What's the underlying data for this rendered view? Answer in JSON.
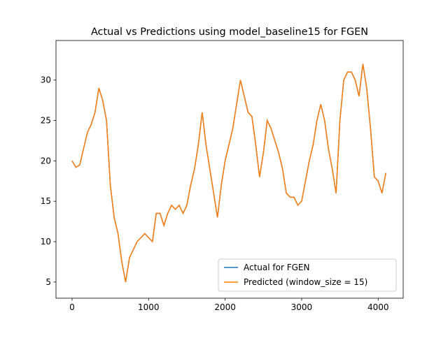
{
  "chart_data": {
    "type": "line",
    "title": "Actual vs Predictions using model_baseline15 for FGEN",
    "x": [
      0,
      50,
      100,
      150,
      200,
      250,
      300,
      350,
      400,
      450,
      500,
      550,
      600,
      650,
      700,
      750,
      800,
      850,
      900,
      950,
      1000,
      1050,
      1100,
      1150,
      1200,
      1250,
      1300,
      1350,
      1400,
      1450,
      1500,
      1550,
      1600,
      1650,
      1700,
      1750,
      1800,
      1850,
      1900,
      1950,
      2000,
      2050,
      2100,
      2150,
      2200,
      2250,
      2300,
      2350,
      2400,
      2450,
      2500,
      2550,
      2600,
      2650,
      2700,
      2750,
      2800,
      2850,
      2900,
      2950,
      3000,
      3050,
      3100,
      3150,
      3200,
      3250,
      3300,
      3350,
      3400,
      3450,
      3500,
      3550,
      3600,
      3650,
      3700,
      3750,
      3800,
      3850,
      3900,
      3950,
      4000,
      4050,
      4100
    ],
    "series": [
      {
        "name": "Actual for FGEN",
        "color": "#1f77b4",
        "values": [
          20,
          19.2,
          19.5,
          21.5,
          23.5,
          24.5,
          26,
          29,
          27.5,
          25,
          17,
          13,
          11,
          7.5,
          5,
          8,
          9,
          10,
          10.5,
          11,
          10.5,
          10,
          13.5,
          13.5,
          12,
          13.5,
          14.5,
          14,
          14.5,
          13.5,
          14.5,
          17,
          19,
          22,
          26,
          22,
          19,
          16,
          13,
          17,
          20,
          22,
          24,
          27,
          30,
          28,
          26,
          25.5,
          22,
          18,
          21,
          25,
          24,
          22.5,
          21,
          19,
          16,
          15.5,
          15.5,
          14.5,
          15,
          17.5,
          20,
          22,
          25,
          27,
          25,
          21.5,
          19,
          16,
          25,
          30,
          31,
          31,
          30,
          28,
          32,
          29,
          24,
          18,
          17.5,
          16,
          18.5
        ]
      },
      {
        "name": "Predicted (window_size = 15)",
        "color": "#ff7f0e",
        "values": [
          20,
          19.2,
          19.5,
          21.5,
          23.5,
          24.5,
          26,
          29,
          27.5,
          25,
          17,
          13,
          11,
          7.5,
          5,
          8,
          9,
          10,
          10.5,
          11,
          10.5,
          10,
          13.5,
          13.5,
          12,
          13.5,
          14.5,
          14,
          14.5,
          13.5,
          14.5,
          17,
          19,
          22,
          26,
          22,
          19,
          16,
          13,
          17,
          20,
          22,
          24,
          27,
          30,
          28,
          26,
          25.5,
          22,
          18,
          21,
          25,
          24,
          22.5,
          21,
          19,
          16,
          15.5,
          15.5,
          14.5,
          15,
          17.5,
          20,
          22,
          25,
          27,
          25,
          21.5,
          19,
          16,
          25,
          30,
          31,
          31,
          30,
          28,
          32,
          29,
          24,
          18,
          17.5,
          16,
          18.5
        ]
      }
    ],
    "xlim": [
      -210,
      4327
    ],
    "xticks": [
      0,
      1000,
      2000,
      3000,
      4000
    ],
    "ylim": [
      3.0,
      34.9
    ],
    "yticks": [
      5,
      10,
      15,
      20,
      25,
      30
    ],
    "legend": "lower right"
  }
}
